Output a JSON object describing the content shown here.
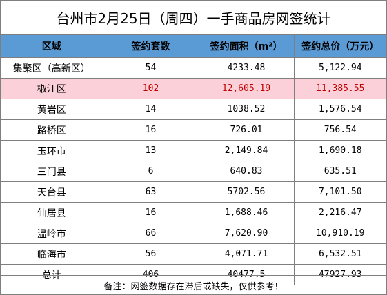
{
  "title": "台州市2月25日（周四）一手商品房网签统计",
  "header": [
    "区域",
    "签约套数",
    "签约面积（m²）",
    "签约总价（万元）"
  ],
  "rows": [
    {
      "region": "集聚区（高新区）",
      "units": "54",
      "area": "4233.48",
      "price": "5,122.94"
    },
    {
      "region": "椒江区",
      "units": "102",
      "area": "12,605.19",
      "price": "11,385.55"
    },
    {
      "region": "黄岩区",
      "units": "14",
      "area": "1038.52",
      "price": "1,576.54"
    },
    {
      "region": "路桥区",
      "units": "16",
      "area": "726.01",
      "price": "756.54"
    },
    {
      "region": "玉环市",
      "units": "13",
      "area": "2,149.84",
      "price": "1,690.18"
    },
    {
      "region": "三门县",
      "units": "6",
      "area": "640.83",
      "price": "635.51"
    },
    {
      "region": "天台县",
      "units": "63",
      "area": "5702.56",
      "price": "7,101.50"
    },
    {
      "region": "仙居县",
      "units": "16",
      "area": "1,688.46",
      "price": "2,216.47"
    },
    {
      "region": "温岭市",
      "units": "66",
      "area": "7,620.90",
      "price": "10,910.19"
    },
    {
      "region": "临海市",
      "units": "56",
      "area": "4,071.71",
      "price": "6,532.51"
    }
  ],
  "total": {
    "region": "总计",
    "units": "406",
    "area": "40477.5",
    "price": "47927.93"
  },
  "footer": "备注：网签数据存在滞后或缺失，仅供参考！",
  "colors": {
    "header_bg": "#5b9bd5",
    "highlight_bg": "#fbd0d8",
    "highlight_text": "#c00000",
    "border": "#7f7f7f"
  }
}
